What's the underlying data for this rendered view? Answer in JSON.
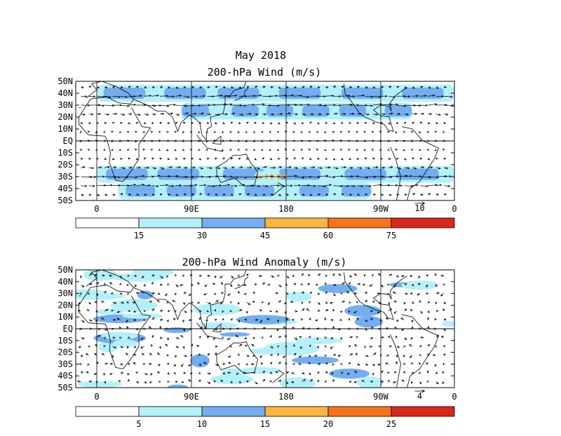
{
  "title": {
    "line1": "May 2018",
    "line2": "200-hPa Wind (m/s)"
  },
  "panels": [
    {
      "id": "wind",
      "title": "200-hPa Wind (m/s)",
      "lat_labels": [
        "50N",
        "40N",
        "30N",
        "20N",
        "10N",
        "EQ",
        "10S",
        "20S",
        "30S",
        "40S",
        "50S"
      ],
      "lon_labels": [
        "0",
        "90E",
        "180",
        "90W",
        "0"
      ],
      "ref_vector": {
        "label": "10",
        "value": 10
      },
      "colorbar": {
        "labels": [
          "15",
          "30",
          "45",
          "60",
          "75"
        ],
        "colors": [
          "#ffffff",
          "#b4f0fa",
          "#74aef0",
          "#fbb640",
          "#f7731c",
          "#d8281a"
        ],
        "bounds": [
          0,
          15,
          30,
          45,
          60,
          75,
          90
        ]
      }
    },
    {
      "id": "anomaly",
      "title": "200-hPa Wind Anomaly (m/s)",
      "lat_labels": [
        "50N",
        "40N",
        "30N",
        "20N",
        "10N",
        "EQ",
        "10S",
        "20S",
        "30S",
        "40S",
        "50S"
      ],
      "lon_labels": [
        "0",
        "90E",
        "180",
        "90W",
        "0"
      ],
      "ref_vector": {
        "label": "4",
        "value": 4
      },
      "colorbar": {
        "labels": [
          "5",
          "10",
          "15",
          "20",
          "25"
        ],
        "colors": [
          "#ffffff",
          "#b4f0fa",
          "#74aef0",
          "#fbb640",
          "#f7731c",
          "#d8281a"
        ],
        "bounds": [
          0,
          5,
          10,
          15,
          20,
          25,
          30
        ]
      }
    }
  ],
  "map_data": {
    "lon_range": [
      -20,
      340
    ],
    "lat_range": [
      -50,
      50
    ],
    "wind_jets": [
      {
        "lat_center": 40,
        "lon_start": 0,
        "lon_end": 340,
        "speed_class": 2
      },
      {
        "lat_center": 25,
        "lon_start": 80,
        "lon_end": 300,
        "speed_class": 2
      },
      {
        "lat_center": -28,
        "lon_start": 0,
        "lon_end": 340,
        "speed_class": 2
      },
      {
        "lat_center": -42,
        "lon_start": 20,
        "lon_end": 260,
        "speed_class": 2
      },
      {
        "lat_center": -30,
        "lon_start": 150,
        "lon_end": 175,
        "speed_class": 3
      }
    ]
  }
}
